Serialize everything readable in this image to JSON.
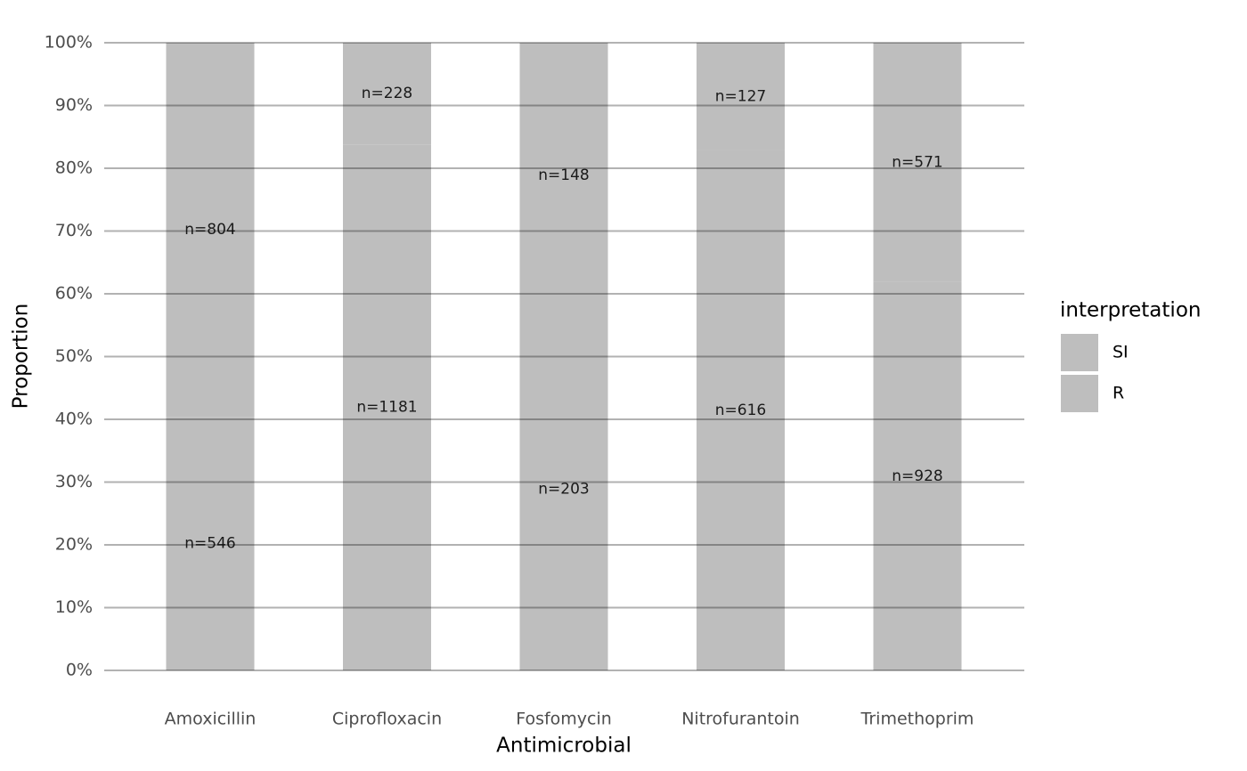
{
  "chart_data": {
    "type": "stacked_bar",
    "x_label": "Antimicrobial",
    "y_label": "Proportion",
    "categories": [
      "Amoxicillin",
      "Ciprofloxacin",
      "Fosfomycin",
      "Nitrofurantoin",
      "Trimethoprim"
    ],
    "legend_title": "interpretation",
    "legend_position": "right",
    "series": [
      {
        "name": "SI",
        "color": "#bebebe",
        "values": [
          59.6,
          16.2,
          42.2,
          17.1,
          38.1
        ],
        "labels": [
          "n=804",
          "n=228",
          "n=148",
          "n=127",
          "n=571"
        ]
      },
      {
        "name": "R",
        "color": "#bebebe",
        "values": [
          40.4,
          83.8,
          57.8,
          82.9,
          61.9
        ],
        "labels": [
          "n=546",
          "n=1181",
          "n=203",
          "n=616",
          "n=928"
        ]
      }
    ],
    "ylim": [
      0,
      100
    ],
    "yticks": [
      {
        "value": 0,
        "label": "0%"
      },
      {
        "value": 10,
        "label": "10%"
      },
      {
        "value": 20,
        "label": "20%"
      },
      {
        "value": 30,
        "label": "30%"
      },
      {
        "value": 40,
        "label": "40%"
      },
      {
        "value": 50,
        "label": "50%"
      },
      {
        "value": 60,
        "label": "60%"
      },
      {
        "value": 70,
        "label": "70%"
      },
      {
        "value": 80,
        "label": "80%"
      },
      {
        "value": 90,
        "label": "90%"
      },
      {
        "value": 100,
        "label": "100%"
      }
    ],
    "grid": true
  }
}
